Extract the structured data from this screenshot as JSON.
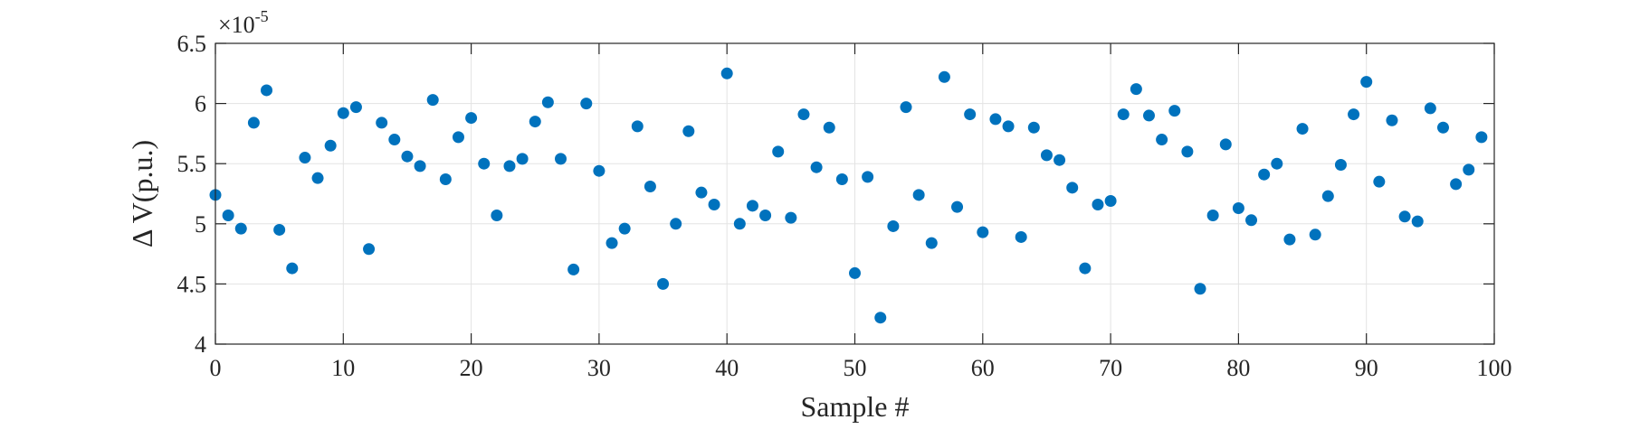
{
  "chart_data": {
    "type": "scatter",
    "xlabel": "Sample #",
    "ylabel": "Δ V(p.u.)",
    "xlim": [
      0,
      100
    ],
    "ylim": [
      4.0,
      6.5
    ],
    "y_exponent_base": "×10",
    "y_exponent_power": "-5",
    "xticks": [
      "0",
      "10",
      "20",
      "30",
      "40",
      "50",
      "60",
      "70",
      "80",
      "90",
      "100"
    ],
    "yticks": [
      "4",
      "4.5",
      "5",
      "5.5",
      "6",
      "6.5"
    ],
    "grid": true,
    "marker_color": "#0072BD",
    "x": [
      0,
      1,
      2,
      3,
      4,
      5,
      6,
      7,
      8,
      9,
      10,
      11,
      12,
      13,
      14,
      15,
      16,
      17,
      18,
      19,
      20,
      21,
      22,
      23,
      24,
      25,
      26,
      27,
      28,
      29,
      30,
      31,
      32,
      33,
      34,
      35,
      36,
      37,
      38,
      39,
      40,
      41,
      42,
      43,
      44,
      45,
      46,
      47,
      48,
      49,
      50,
      51,
      52,
      53,
      54,
      55,
      56,
      57,
      58,
      59,
      60,
      61,
      62,
      63,
      64,
      65,
      66,
      67,
      68,
      69,
      70,
      71,
      72,
      73,
      74,
      75,
      76,
      77,
      78,
      79,
      80,
      81,
      82,
      83,
      84,
      85,
      86,
      87,
      88,
      89,
      90,
      91,
      92,
      93,
      94,
      95,
      96,
      97,
      98,
      99
    ],
    "y": [
      5.24,
      5.07,
      4.96,
      5.84,
      6.11,
      4.95,
      4.63,
      5.55,
      5.38,
      5.65,
      5.92,
      5.97,
      4.79,
      5.84,
      5.7,
      5.56,
      5.48,
      6.03,
      5.37,
      5.72,
      5.88,
      5.5,
      5.07,
      5.48,
      5.54,
      5.85,
      6.01,
      5.54,
      4.62,
      6.0,
      5.44,
      4.84,
      4.96,
      5.81,
      5.31,
      4.5,
      5.0,
      5.77,
      5.26,
      5.16,
      6.25,
      5.0,
      5.15,
      5.07,
      5.6,
      5.05,
      5.91,
      5.47,
      5.8,
      5.37,
      4.59,
      5.39,
      4.22,
      4.98,
      5.97,
      5.24,
      4.84,
      6.22,
      5.14,
      5.91,
      4.93,
      5.87,
      5.81,
      4.89,
      5.8,
      5.57,
      5.53,
      5.3,
      4.63,
      5.16,
      5.19,
      5.91,
      6.12,
      5.9,
      5.7,
      5.94,
      5.6,
      4.46,
      5.07,
      5.66,
      5.13,
      5.03,
      5.41,
      5.5,
      4.87,
      5.79,
      4.91,
      5.23,
      5.49,
      5.91,
      6.18,
      5.35,
      5.86,
      5.06,
      5.02,
      5.96,
      5.8,
      5.33,
      5.45,
      5.72
    ]
  }
}
